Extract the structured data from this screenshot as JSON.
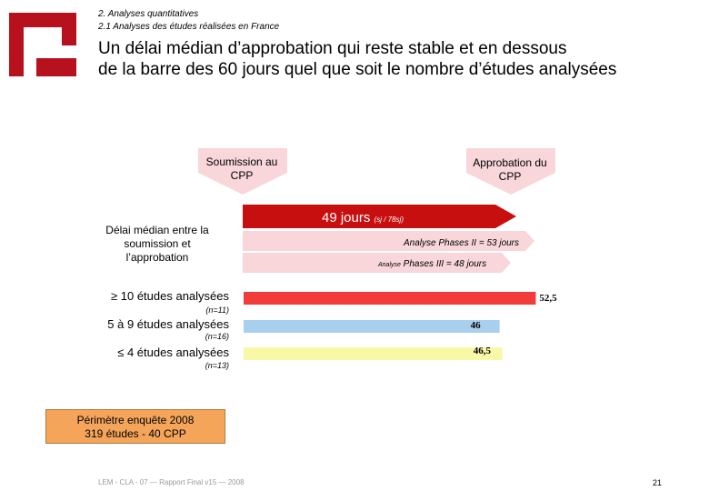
{
  "header": {
    "breadcrumb1": "2. Analyses quantitatives",
    "breadcrumb2": "2.1 Analyses des études réalisées en France",
    "title_line1": "Un délai médian d’approbation qui reste stable et en dessous",
    "title_line2": "de la barre des 60 jours quel que soit le nombre d’études analysées"
  },
  "timeline": {
    "submission_label": "Soumission au CPP",
    "approval_label": "Approbation du CPP",
    "delay_label": "Délai médian entre la soumission et l’approbation",
    "days_main": "49 jours",
    "days_sub": "(sj / 78sj)",
    "phase2": "Analyse Phases II = 53 jours",
    "phase3_prefix": "Analyse",
    "phase3_rest": " Phases III = 48 jours"
  },
  "chart_data": {
    "type": "bar",
    "orientation": "horizontal",
    "categories": [
      "≥ 10 études analysées",
      "5 à 9 études analysées",
      "≤ 4 études analysées"
    ],
    "n_labels": [
      "(n=11)",
      "(n=16)",
      "(n=13)"
    ],
    "values": [
      52.5,
      46,
      46.5
    ],
    "value_labels": [
      "52,5",
      "46",
      "46,5"
    ],
    "colors": [
      "#f23c3c",
      "#a9cfef",
      "#f8f8a6"
    ]
  },
  "perimeter": {
    "line1": "Périmètre enquête 2008",
    "line2": "319 études - 40 CPP"
  },
  "footer": {
    "text": "LEM - CLA - 07 — Rapport Final v15 — 2008",
    "page": "21"
  },
  "colors": {
    "brand": "#b8111e",
    "arrow_dark": "#c80f0f",
    "arrow_light": "#f8d6da"
  }
}
